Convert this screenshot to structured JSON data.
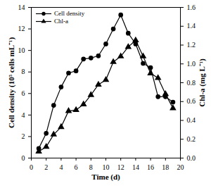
{
  "chart_data": {
    "type": "line",
    "x_label": "Time (d)",
    "y_label": "Cell density (10⁵ cells mL⁻¹)",
    "y2_label": "Chl-a (mg L⁻¹)",
    "x": [
      1,
      2,
      3,
      4,
      5,
      6,
      7,
      8,
      9,
      10,
      11,
      12,
      13,
      14,
      15,
      16,
      17,
      18,
      19
    ],
    "series": [
      {
        "name": "Cell density",
        "color": "#000000",
        "marker": "circle",
        "line_style": "solid",
        "values": [
          0.9,
          2.3,
          4.9,
          6.6,
          7.9,
          8.1,
          9.2,
          9.3,
          9.5,
          10.6,
          12.0,
          13.3,
          11.6,
          10.6,
          8.8,
          8.4,
          5.7,
          5.7,
          5.2
        ]
      },
      {
        "name": "Chl-a",
        "color": "#000000",
        "marker": "triangle",
        "line_style": "solid",
        "axis": "y2",
        "values": [
          0.07,
          0.12,
          0.25,
          0.33,
          0.5,
          0.51,
          0.57,
          0.67,
          0.78,
          0.83,
          1.02,
          1.08,
          1.18,
          1.25,
          1.08,
          0.9,
          0.85,
          0.68,
          0.53
        ]
      }
    ],
    "xlim": [
      0,
      20
    ],
    "xticks": [
      0,
      2,
      4,
      6,
      8,
      10,
      12,
      14,
      16,
      18,
      20
    ],
    "ylim": [
      0,
      14
    ],
    "yticks": [
      0,
      2,
      4,
      6,
      8,
      10,
      12,
      14
    ],
    "y2lim": [
      0,
      1.6
    ],
    "y2ticks": [
      {
        "value": 0,
        "label": "0.0"
      },
      0.2,
      0.4,
      0.6,
      0.8,
      {
        "value": 1,
        "label": "1.0"
      },
      1.2,
      1.4,
      1.6
    ],
    "legend": "upper left",
    "grid": false
  }
}
